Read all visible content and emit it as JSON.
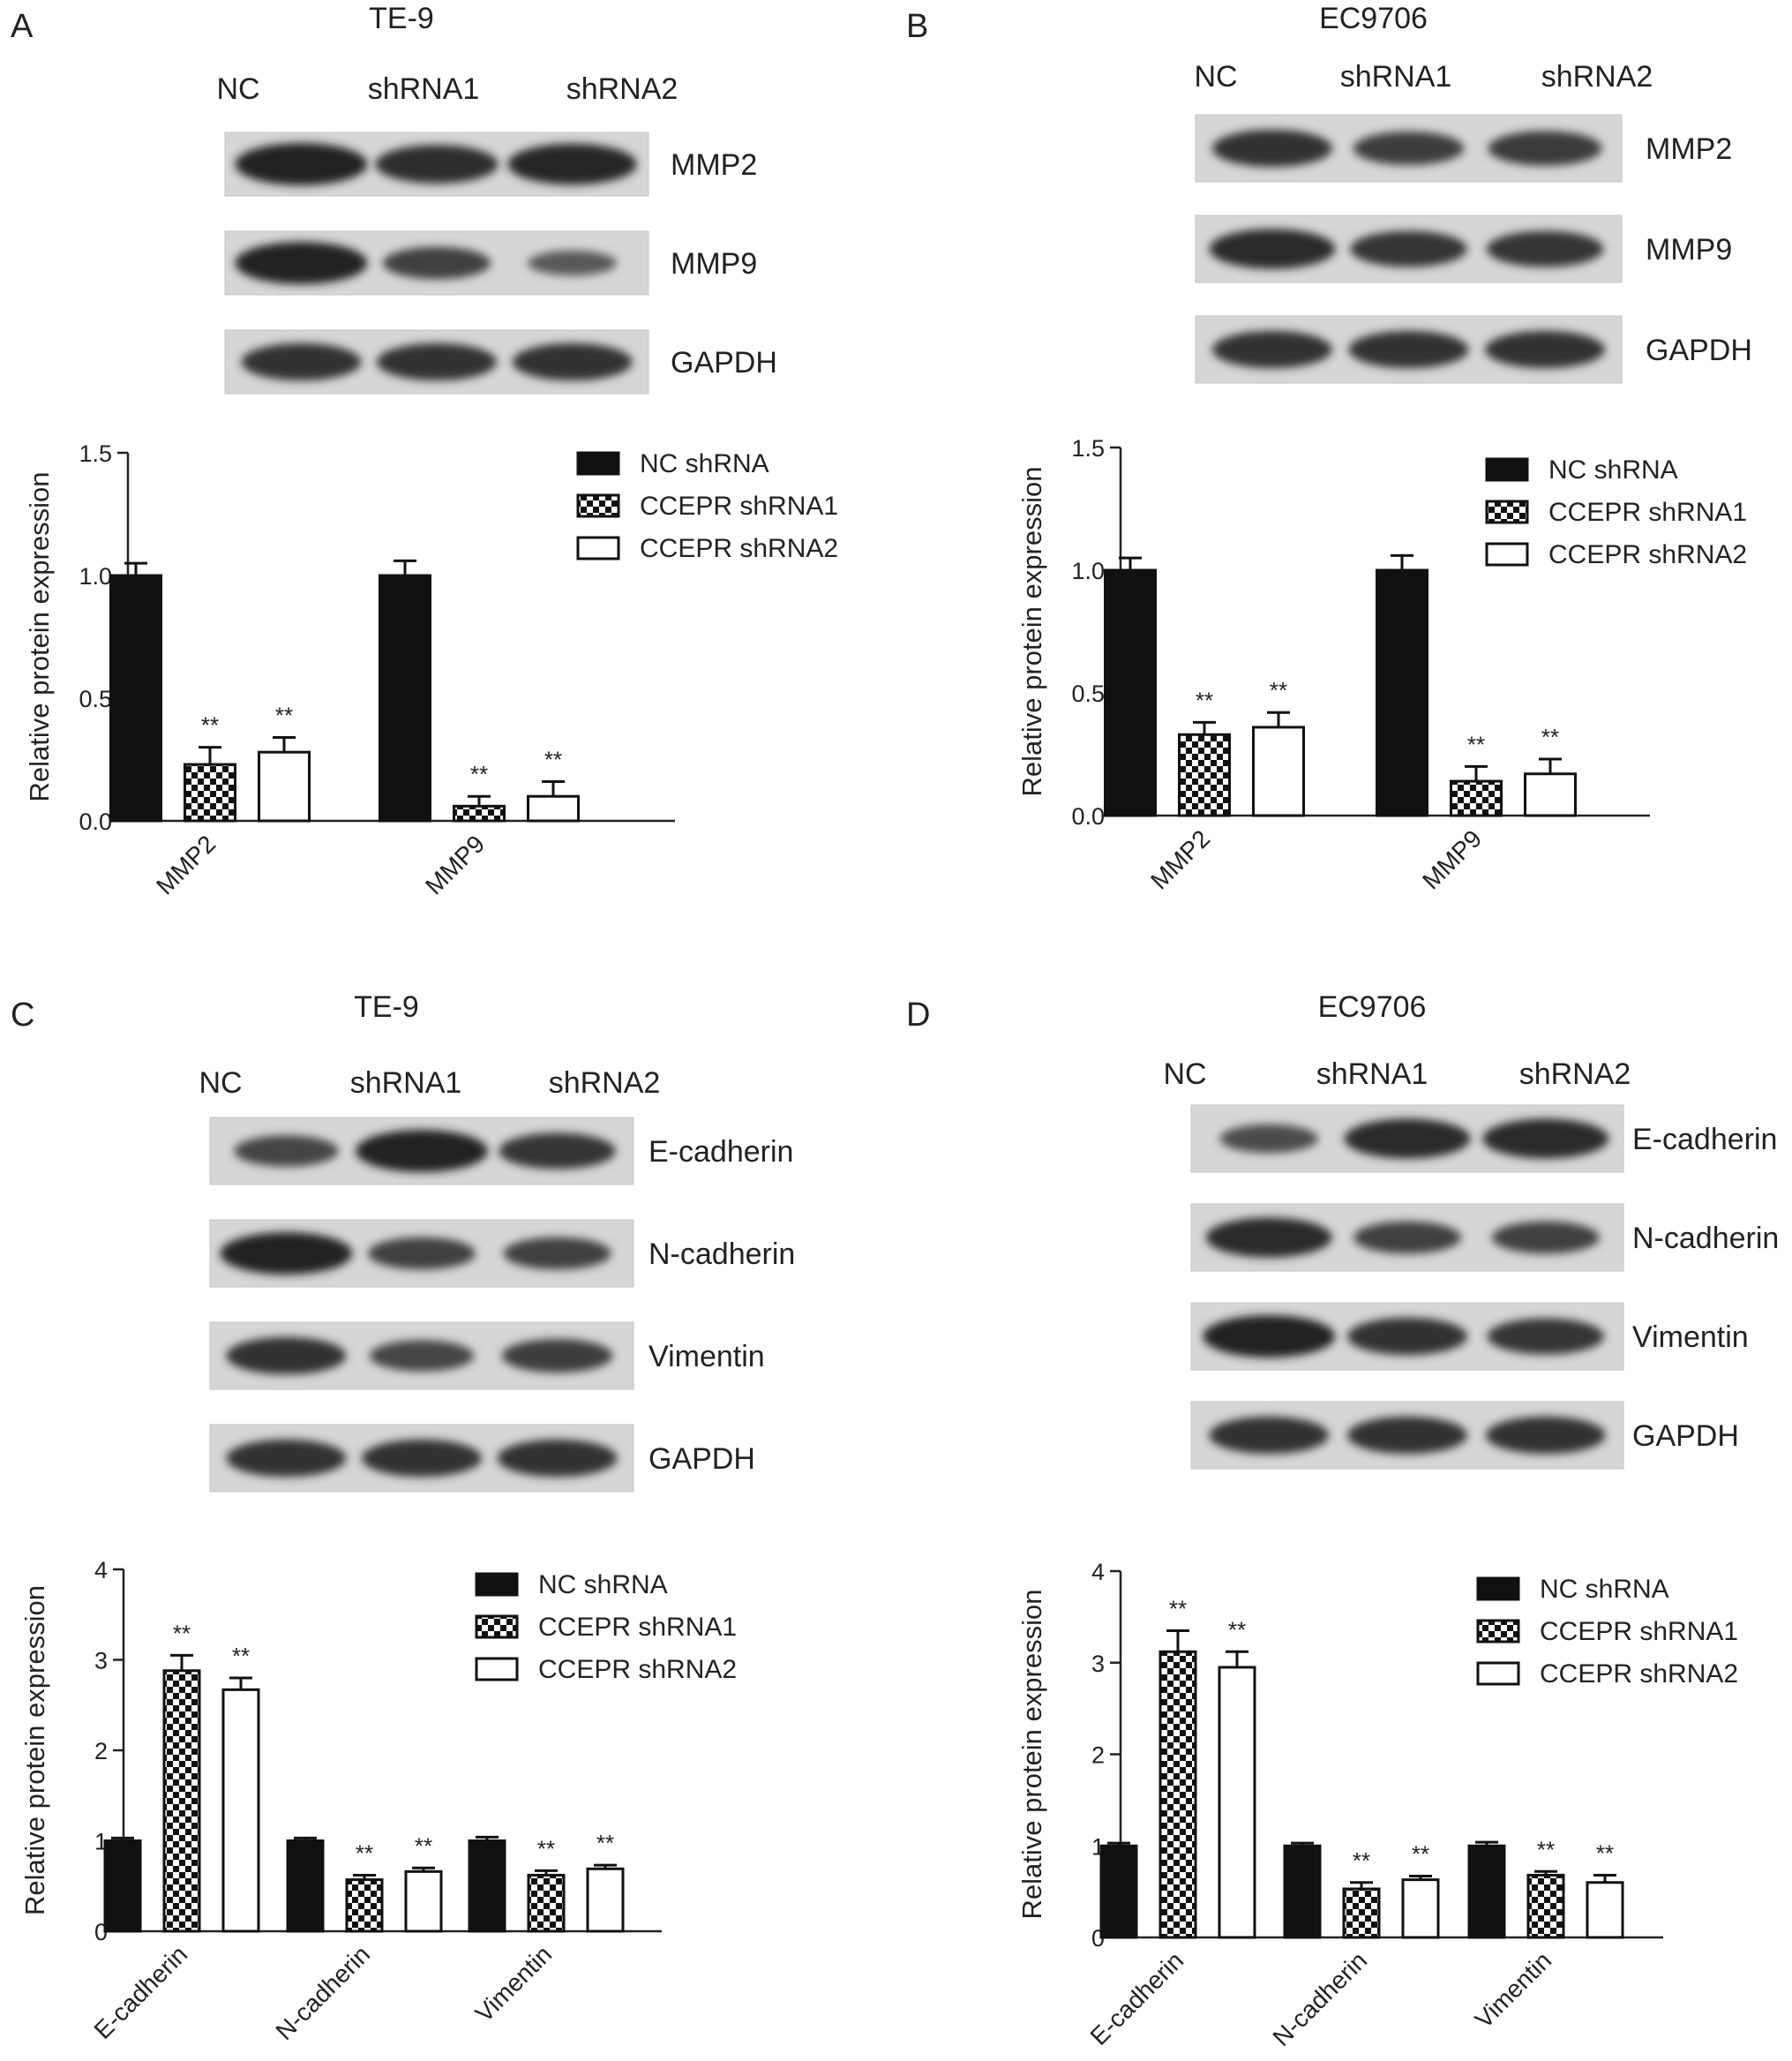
{
  "panels": [
    {
      "letter": "A",
      "cell_line": "TE-9",
      "lanes": [
        "NC",
        "shRNA1",
        "shRNA2"
      ],
      "bands": [
        {
          "label": "MMP2",
          "intensity": [
            1.0,
            0.85,
            0.95
          ]
        },
        {
          "label": "MMP9",
          "intensity": [
            1.0,
            0.6,
            0.3
          ]
        },
        {
          "label": "GAPDH",
          "intensity": [
            0.8,
            0.8,
            0.8
          ]
        }
      ],
      "chart_data": {
        "type": "bar",
        "ylabel": "Relative protein expression",
        "ylim": [
          0,
          1.5
        ],
        "yticks": [
          "0.0",
          "0.5",
          "1.0",
          "1.5"
        ],
        "categories": [
          "MMP2",
          "MMP9"
        ],
        "series": [
          {
            "name": "NC shRNA",
            "fill": "solid",
            "values": [
              1.0,
              1.0
            ],
            "errors": [
              0.05,
              0.06
            ],
            "stars": [
              "",
              ""
            ]
          },
          {
            "name": "CCEPR shRNA1",
            "fill": "checker",
            "values": [
              0.23,
              0.06
            ],
            "errors": [
              0.07,
              0.04
            ],
            "stars": [
              "**",
              "**"
            ]
          },
          {
            "name": "CCEPR shRNA2",
            "fill": "empty",
            "values": [
              0.28,
              0.1
            ],
            "errors": [
              0.06,
              0.06
            ],
            "stars": [
              "**",
              "**"
            ]
          }
        ],
        "legend": "top-right"
      }
    },
    {
      "letter": "B",
      "cell_line": "EC9706",
      "lanes": [
        "NC",
        "shRNA1",
        "shRNA2"
      ],
      "bands": [
        {
          "label": "MMP2",
          "intensity": [
            0.8,
            0.65,
            0.7
          ]
        },
        {
          "label": "MMP9",
          "intensity": [
            0.9,
            0.75,
            0.75
          ]
        },
        {
          "label": "GAPDH",
          "intensity": [
            0.8,
            0.8,
            0.8
          ]
        }
      ],
      "chart_data": {
        "type": "bar",
        "ylabel": "Relative protein expression",
        "ylim": [
          0,
          1.5
        ],
        "yticks": [
          "0.0",
          "0.5",
          "1.0",
          "1.5"
        ],
        "categories": [
          "MMP2",
          "MMP9"
        ],
        "series": [
          {
            "name": "NC shRNA",
            "fill": "solid",
            "values": [
              1.0,
              1.0
            ],
            "errors": [
              0.05,
              0.06
            ],
            "stars": [
              "",
              ""
            ]
          },
          {
            "name": "CCEPR shRNA1",
            "fill": "checker",
            "values": [
              0.33,
              0.14
            ],
            "errors": [
              0.05,
              0.06
            ],
            "stars": [
              "**",
              "**"
            ]
          },
          {
            "name": "CCEPR shRNA2",
            "fill": "empty",
            "values": [
              0.36,
              0.17
            ],
            "errors": [
              0.06,
              0.06
            ],
            "stars": [
              "**",
              "**"
            ]
          }
        ],
        "legend": "top-right"
      }
    },
    {
      "letter": "C",
      "cell_line": "TE-9",
      "lanes": [
        "NC",
        "shRNA1",
        "shRNA2"
      ],
      "bands": [
        {
          "label": "E-cadherin",
          "intensity": [
            0.55,
            1.0,
            0.75
          ]
        },
        {
          "label": "N-cadherin",
          "intensity": [
            1.0,
            0.6,
            0.6
          ]
        },
        {
          "label": "Vimentin",
          "intensity": [
            0.8,
            0.55,
            0.65
          ]
        },
        {
          "label": "GAPDH",
          "intensity": [
            0.8,
            0.8,
            0.8
          ]
        }
      ],
      "chart_data": {
        "type": "bar",
        "ylabel": "Relative protein expression",
        "ylim": [
          0,
          4
        ],
        "yticks": [
          "0",
          "1",
          "2",
          "3",
          "4"
        ],
        "categories": [
          "E-cadherin",
          "N-cadherin",
          "Vimentin"
        ],
        "series": [
          {
            "name": "NC shRNA",
            "fill": "solid",
            "values": [
              1.0,
              1.0,
              1.0
            ],
            "errors": [
              0.03,
              0.03,
              0.04
            ],
            "stars": [
              "",
              "",
              ""
            ]
          },
          {
            "name": "CCEPR shRNA1",
            "fill": "checker",
            "values": [
              2.88,
              0.57,
              0.62
            ],
            "errors": [
              0.17,
              0.05,
              0.05
            ],
            "stars": [
              "**",
              "**",
              "**"
            ]
          },
          {
            "name": "CCEPR shRNA2",
            "fill": "empty",
            "values": [
              2.67,
              0.66,
              0.69
            ],
            "errors": [
              0.13,
              0.04,
              0.04
            ],
            "stars": [
              "**",
              "**",
              "**"
            ]
          }
        ],
        "legend": "top-right"
      }
    },
    {
      "letter": "D",
      "cell_line": "EC9706",
      "lanes": [
        "NC",
        "shRNA1",
        "shRNA2"
      ],
      "bands": [
        {
          "label": "E-cadherin",
          "intensity": [
            0.45,
            0.9,
            0.9
          ]
        },
        {
          "label": "N-cadherin",
          "intensity": [
            0.9,
            0.6,
            0.6
          ]
        },
        {
          "label": "Vimentin",
          "intensity": [
            1.0,
            0.8,
            0.75
          ]
        },
        {
          "label": "GAPDH",
          "intensity": [
            0.8,
            0.8,
            0.8
          ]
        }
      ],
      "chart_data": {
        "type": "bar",
        "ylabel": "Relative protein expression",
        "ylim": [
          0,
          4
        ],
        "yticks": [
          "0",
          "1",
          "2",
          "3",
          "4"
        ],
        "categories": [
          "E-cadherin",
          "N-cadherin",
          "Vimentin"
        ],
        "series": [
          {
            "name": "NC shRNA",
            "fill": "solid",
            "values": [
              1.0,
              1.0,
              1.0
            ],
            "errors": [
              0.03,
              0.03,
              0.04
            ],
            "stars": [
              "",
              "",
              ""
            ]
          },
          {
            "name": "CCEPR shRNA1",
            "fill": "checker",
            "values": [
              3.12,
              0.53,
              0.68
            ],
            "errors": [
              0.23,
              0.07,
              0.04
            ],
            "stars": [
              "**",
              "**",
              "**"
            ]
          },
          {
            "name": "CCEPR shRNA2",
            "fill": "empty",
            "values": [
              2.95,
              0.63,
              0.6
            ],
            "errors": [
              0.17,
              0.04,
              0.08
            ],
            "stars": [
              "**",
              "**",
              "**"
            ]
          }
        ],
        "legend": "top-right"
      }
    }
  ]
}
